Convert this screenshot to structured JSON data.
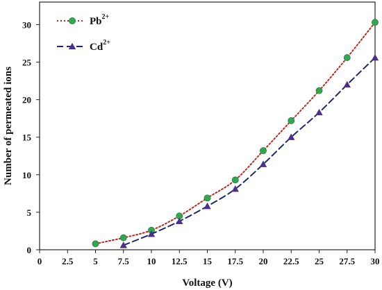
{
  "chart_data": {
    "type": "line",
    "title": "",
    "xlabel": "Voltage (V)",
    "ylabel": "Number of permeated ions",
    "xlim": [
      0,
      30
    ],
    "ylim": [
      0,
      33
    ],
    "x_ticks": [
      0,
      2.5,
      5,
      7.5,
      10,
      12.5,
      15,
      17.5,
      20,
      22.5,
      25,
      27.5,
      30
    ],
    "x_tick_labels": [
      "0",
      "2.5",
      "5",
      "7.5",
      "10",
      "12.5",
      "15",
      "17.5",
      "20",
      "22.5",
      "25",
      "27.5",
      "30"
    ],
    "y_ticks": [
      0,
      5,
      10,
      15,
      20,
      25,
      30
    ],
    "y_tick_labels": [
      "0",
      "5",
      "10",
      "15",
      "20",
      "25",
      "30"
    ],
    "grid": false,
    "legend_position": "top-left",
    "series": [
      {
        "name": "Pb2+",
        "name_base": "Pb",
        "name_sup": "2+",
        "color": "#c0281e",
        "marker_color": "#2fa84f",
        "line_style": "dotted",
        "marker": "circle",
        "x": [
          5,
          7.5,
          10,
          12.5,
          15,
          17.5,
          20,
          22.5,
          25,
          27.5,
          30
        ],
        "values": [
          0.8,
          1.6,
          2.6,
          4.5,
          6.9,
          9.3,
          13.2,
          17.2,
          21.2,
          25.6,
          30.3
        ]
      },
      {
        "name": "Cd2+",
        "name_base": "Cd",
        "name_sup": "2+",
        "color": "#1c2a6b",
        "marker_color": "#4b2f8a",
        "line_style": "dashed",
        "marker": "triangle",
        "x": [
          7.5,
          10,
          12.5,
          15,
          17.5,
          20,
          22.5,
          25,
          27.5,
          30
        ],
        "values": [
          0.6,
          2.1,
          3.8,
          5.8,
          8.1,
          11.4,
          15.0,
          18.3,
          22.0,
          25.6
        ]
      }
    ]
  }
}
